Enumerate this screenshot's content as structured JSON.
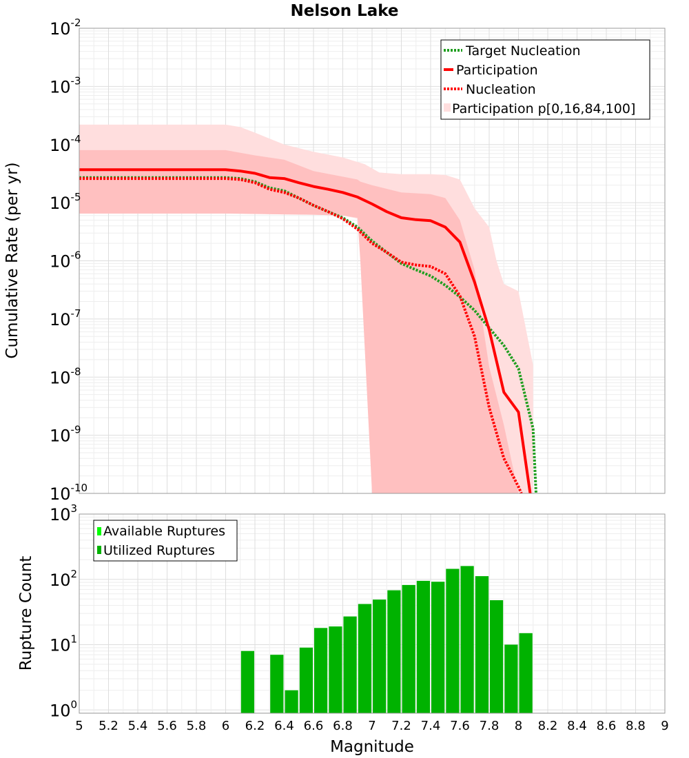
{
  "chart_data": [
    {
      "type": "line",
      "title": "Nelson Lake",
      "xlabel": "Magnitude",
      "ylabel": "Cumulative Rate (per yr)",
      "xlim": [
        5,
        9
      ],
      "ylim_log10": [
        -10,
        -2
      ],
      "yscale": "log",
      "yticks": [
        {
          "base": "10",
          "exp": "-2"
        },
        {
          "base": "10",
          "exp": "-3"
        },
        {
          "base": "10",
          "exp": "-4"
        },
        {
          "base": "10",
          "exp": "-5"
        },
        {
          "base": "10",
          "exp": "-6"
        },
        {
          "base": "10",
          "exp": "-7"
        },
        {
          "base": "10",
          "exp": "-8"
        },
        {
          "base": "10",
          "exp": "-9"
        },
        {
          "base": "10",
          "exp": "-10"
        }
      ],
      "legend_position": "top-right",
      "legend": [
        {
          "label": "Target Nucleation",
          "style": "dotted",
          "color": "#1f9e1f"
        },
        {
          "label": "Participation",
          "style": "solid",
          "color": "#ff0000"
        },
        {
          "label": "Nucleation",
          "style": "dotted",
          "color": "#ff0000"
        },
        {
          "label": "Participation p[0,16,84,100]",
          "style": "band",
          "color": "#ffdede"
        }
      ],
      "band_outer": {
        "x": [
          5.0,
          6.0,
          6.1,
          6.2,
          6.4,
          6.6,
          6.8,
          6.95,
          7.05,
          7.2,
          7.4,
          7.5,
          7.6,
          7.7,
          7.8,
          7.85,
          7.9,
          8.0,
          8.1
        ],
        "low": [
          6.5e-06,
          6.5e-06,
          6.5e-06,
          6.4e-06,
          6.3e-06,
          6.2e-06,
          6e-06,
          5e-06,
          1e-10,
          1e-10,
          1e-10,
          1e-10,
          1e-10,
          1e-10,
          1e-10,
          1e-10,
          1e-10,
          1e-10,
          1e-10
        ],
        "high": [
          0.00022,
          0.00022,
          0.0002,
          0.00016,
          0.0001,
          7.5e-05,
          6e-05,
          4.6e-05,
          3.3e-05,
          3.1e-05,
          3.1e-05,
          3e-05,
          2.5e-05,
          8e-06,
          3.8e-06,
          1e-06,
          4e-07,
          3e-07,
          1.6e-08
        ]
      },
      "band_inner": {
        "x": [
          5.0,
          6.0,
          6.2,
          6.4,
          6.6,
          6.8,
          6.9,
          6.92,
          7.0,
          7.2,
          7.4,
          7.5,
          7.6,
          7.7,
          7.8,
          7.9,
          8.0
        ],
        "low": [
          6.5e-06,
          6.5e-06,
          6.4e-06,
          6.3e-06,
          6.2e-06,
          6e-06,
          5.5e-06,
          1e-06,
          1e-10,
          1e-10,
          1e-10,
          1e-10,
          1e-10,
          1e-10,
          1e-10,
          1e-10,
          1e-10
        ],
        "high": [
          8e-05,
          8e-05,
          6.5e-05,
          5.5e-05,
          3.5e-05,
          2.8e-05,
          2.5e-05,
          2.3e-05,
          2e-05,
          1.5e-05,
          1.4e-05,
          1.2e-05,
          5e-06,
          7e-07,
          1.5e-08,
          1.5e-09,
          1e-10
        ]
      },
      "series": [
        {
          "name": "Target Nucleation",
          "style": "dotted",
          "color": "#1f9e1f",
          "x": [
            5.0,
            6.0,
            6.1,
            6.2,
            6.3,
            6.4,
            6.5,
            6.6,
            6.7,
            6.8,
            6.9,
            7.0,
            7.1,
            7.2,
            7.3,
            7.4,
            7.5,
            7.6,
            7.7,
            7.8,
            7.9,
            8.0,
            8.1,
            8.12
          ],
          "y": [
            2.7e-05,
            2.7e-05,
            2.6e-05,
            2.3e-05,
            1.8e-05,
            1.6e-05,
            1.2e-05,
            9e-06,
            7e-06,
            5.5e-06,
            3.8e-06,
            2.2e-06,
            1.4e-06,
            9e-07,
            7e-07,
            5.5e-07,
            3.8e-07,
            2.4e-07,
            1.4e-07,
            7e-08,
            3.5e-08,
            1.4e-08,
            1.3e-09,
            1e-10
          ]
        },
        {
          "name": "Participation",
          "style": "solid",
          "color": "#ff0000",
          "x": [
            5.0,
            6.0,
            6.1,
            6.2,
            6.3,
            6.4,
            6.5,
            6.6,
            6.7,
            6.8,
            6.9,
            7.0,
            7.1,
            7.2,
            7.3,
            7.4,
            7.5,
            7.6,
            7.7,
            7.8,
            7.9,
            8.0,
            8.08
          ],
          "y": [
            3.7e-05,
            3.7e-05,
            3.5e-05,
            3.2e-05,
            2.7e-05,
            2.6e-05,
            2.2e-05,
            1.9e-05,
            1.7e-05,
            1.5e-05,
            1.25e-05,
            9.5e-06,
            7e-06,
            5.5e-06,
            5.1e-06,
            4.9e-06,
            3.8e-06,
            2.1e-06,
            4.3e-07,
            6.5e-08,
            5.5e-09,
            2.5e-09,
            1e-10
          ]
        },
        {
          "name": "Nucleation",
          "style": "dotted",
          "color": "#ff0000",
          "x": [
            5.0,
            6.0,
            6.1,
            6.2,
            6.3,
            6.4,
            6.5,
            6.6,
            6.7,
            6.8,
            6.9,
            7.0,
            7.1,
            7.2,
            7.3,
            7.4,
            7.5,
            7.6,
            7.7,
            7.8,
            7.9,
            7.95,
            8.0,
            8.02
          ],
          "y": [
            2.6e-05,
            2.6e-05,
            2.5e-05,
            2.2e-05,
            1.7e-05,
            1.5e-05,
            1.2e-05,
            9e-06,
            7e-06,
            5.3e-06,
            3.5e-06,
            2e-06,
            1.4e-06,
            9.5e-07,
            8.5e-07,
            8e-07,
            6e-07,
            2.5e-07,
            5e-08,
            3e-09,
            4e-10,
            2.3e-10,
            1.3e-10,
            1e-10
          ]
        }
      ]
    },
    {
      "type": "bar",
      "xlabel": "Magnitude",
      "ylabel": "Rupture Count",
      "xlim": [
        5,
        9
      ],
      "ylim_log10": [
        -0.05,
        3
      ],
      "yscale": "log",
      "yticks": [
        {
          "base": "10",
          "exp": "0"
        },
        {
          "base": "10",
          "exp": "1"
        },
        {
          "base": "10",
          "exp": "2"
        },
        {
          "base": "10",
          "exp": "3"
        }
      ],
      "xticks": [
        "5",
        "5.2",
        "5.4",
        "5.6",
        "5.8",
        "6",
        "6.2",
        "6.4",
        "6.6",
        "6.8",
        "7",
        "7.2",
        "7.4",
        "7.6",
        "7.8",
        "8",
        "8.2",
        "8.4",
        "8.6",
        "8.8",
        "9"
      ],
      "legend_position": "top-left",
      "legend": [
        {
          "label": "Available Ruptures",
          "color": "#00ff00"
        },
        {
          "label": "Utilized Ruptures",
          "color": "#00b200"
        }
      ],
      "bin_width": 0.1,
      "series": [
        {
          "name": "Utilized Ruptures",
          "color": "#00b200",
          "x": [
            6.15,
            6.35,
            6.45,
            6.55,
            6.65,
            6.75,
            6.85,
            6.95,
            7.05,
            7.15,
            7.25,
            7.35,
            7.45,
            7.55,
            7.65,
            7.75,
            7.85,
            7.95,
            8.05
          ],
          "values": [
            8,
            7,
            2,
            9,
            18,
            19,
            27,
            42,
            49,
            68,
            82,
            95,
            92,
            145,
            160,
            112,
            48,
            10,
            15
          ]
        }
      ]
    }
  ]
}
